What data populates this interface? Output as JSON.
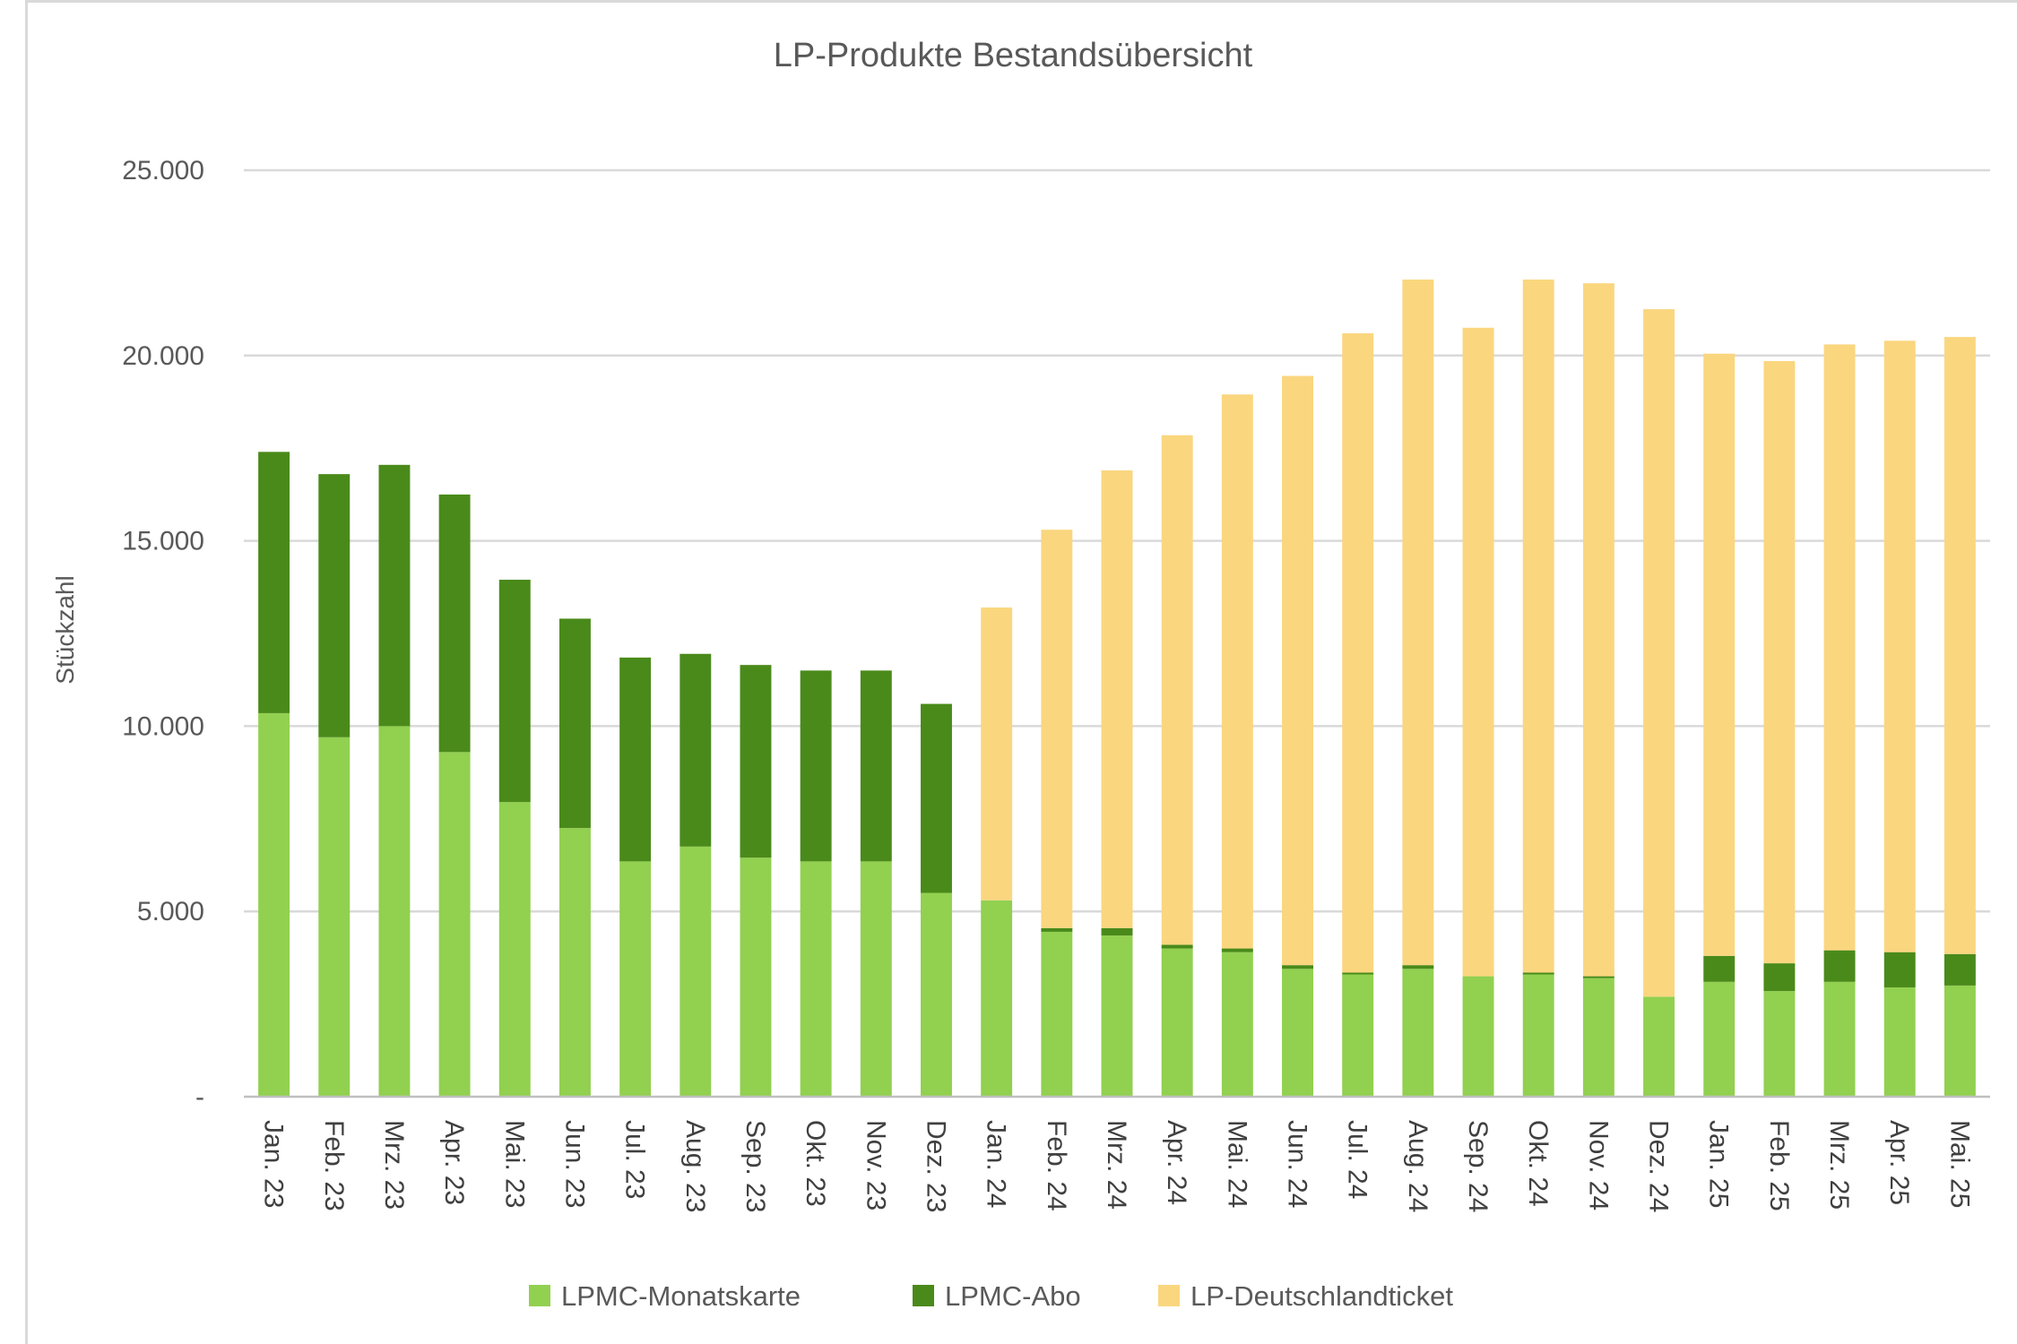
{
  "chart_data": {
    "type": "bar",
    "stacked": true,
    "title": "LP-Produkte Bestandsübersicht",
    "xlabel": "",
    "ylabel": "Stückzahl",
    "ylim": [
      0,
      25000
    ],
    "yticks": [
      0,
      5000,
      10000,
      15000,
      20000,
      25000
    ],
    "ytick_labels": [
      "-",
      "5.000",
      "10.000",
      "15.000",
      "20.000",
      "25.000"
    ],
    "grid": true,
    "legend_position": "bottom",
    "categories": [
      "Jan. 23",
      "Feb. 23",
      "Mrz. 23",
      "Apr. 23",
      "Mai. 23",
      "Jun. 23",
      "Jul. 23",
      "Aug. 23",
      "Sep. 23",
      "Okt. 23",
      "Nov. 23",
      "Dez. 23",
      "Jan. 24",
      "Feb. 24",
      "Mrz. 24",
      "Apr. 24",
      "Mai. 24",
      "Jun. 24",
      "Jul. 24",
      "Aug. 24",
      "Sep. 24",
      "Okt. 24",
      "Nov. 24",
      "Dez. 24",
      "Jan. 25",
      "Feb. 25",
      "Mrz. 25",
      "Apr. 25",
      "Mai. 25"
    ],
    "series": [
      {
        "name": "LPMC-Monatskarte",
        "color": "#92d050",
        "values": [
          10350,
          9700,
          10000,
          9300,
          7950,
          7250,
          6350,
          6750,
          6450,
          6350,
          6350,
          5500,
          5300,
          4450,
          4350,
          4000,
          3900,
          3450,
          3300,
          3450,
          3250,
          3300,
          3200,
          2700,
          3100,
          2850,
          3100,
          2950,
          3000
        ]
      },
      {
        "name": "LPMC-Abo",
        "color": "#4a8a1a",
        "values": [
          7050,
          7100,
          7050,
          6950,
          6000,
          5650,
          5500,
          5200,
          5200,
          5150,
          5150,
          5100,
          0,
          100,
          200,
          100,
          100,
          100,
          50,
          100,
          0,
          50,
          50,
          0,
          700,
          750,
          850,
          950,
          850
        ]
      },
      {
        "name": "LP-Deutschlandticket",
        "color": "#fad67f",
        "values": [
          0,
          0,
          0,
          0,
          0,
          0,
          0,
          0,
          0,
          0,
          0,
          0,
          7900,
          10750,
          12350,
          13750,
          14950,
          15900,
          17250,
          18500,
          17500,
          18700,
          18700,
          18550,
          16250,
          16250,
          16350,
          16500,
          16650
        ]
      }
    ]
  }
}
